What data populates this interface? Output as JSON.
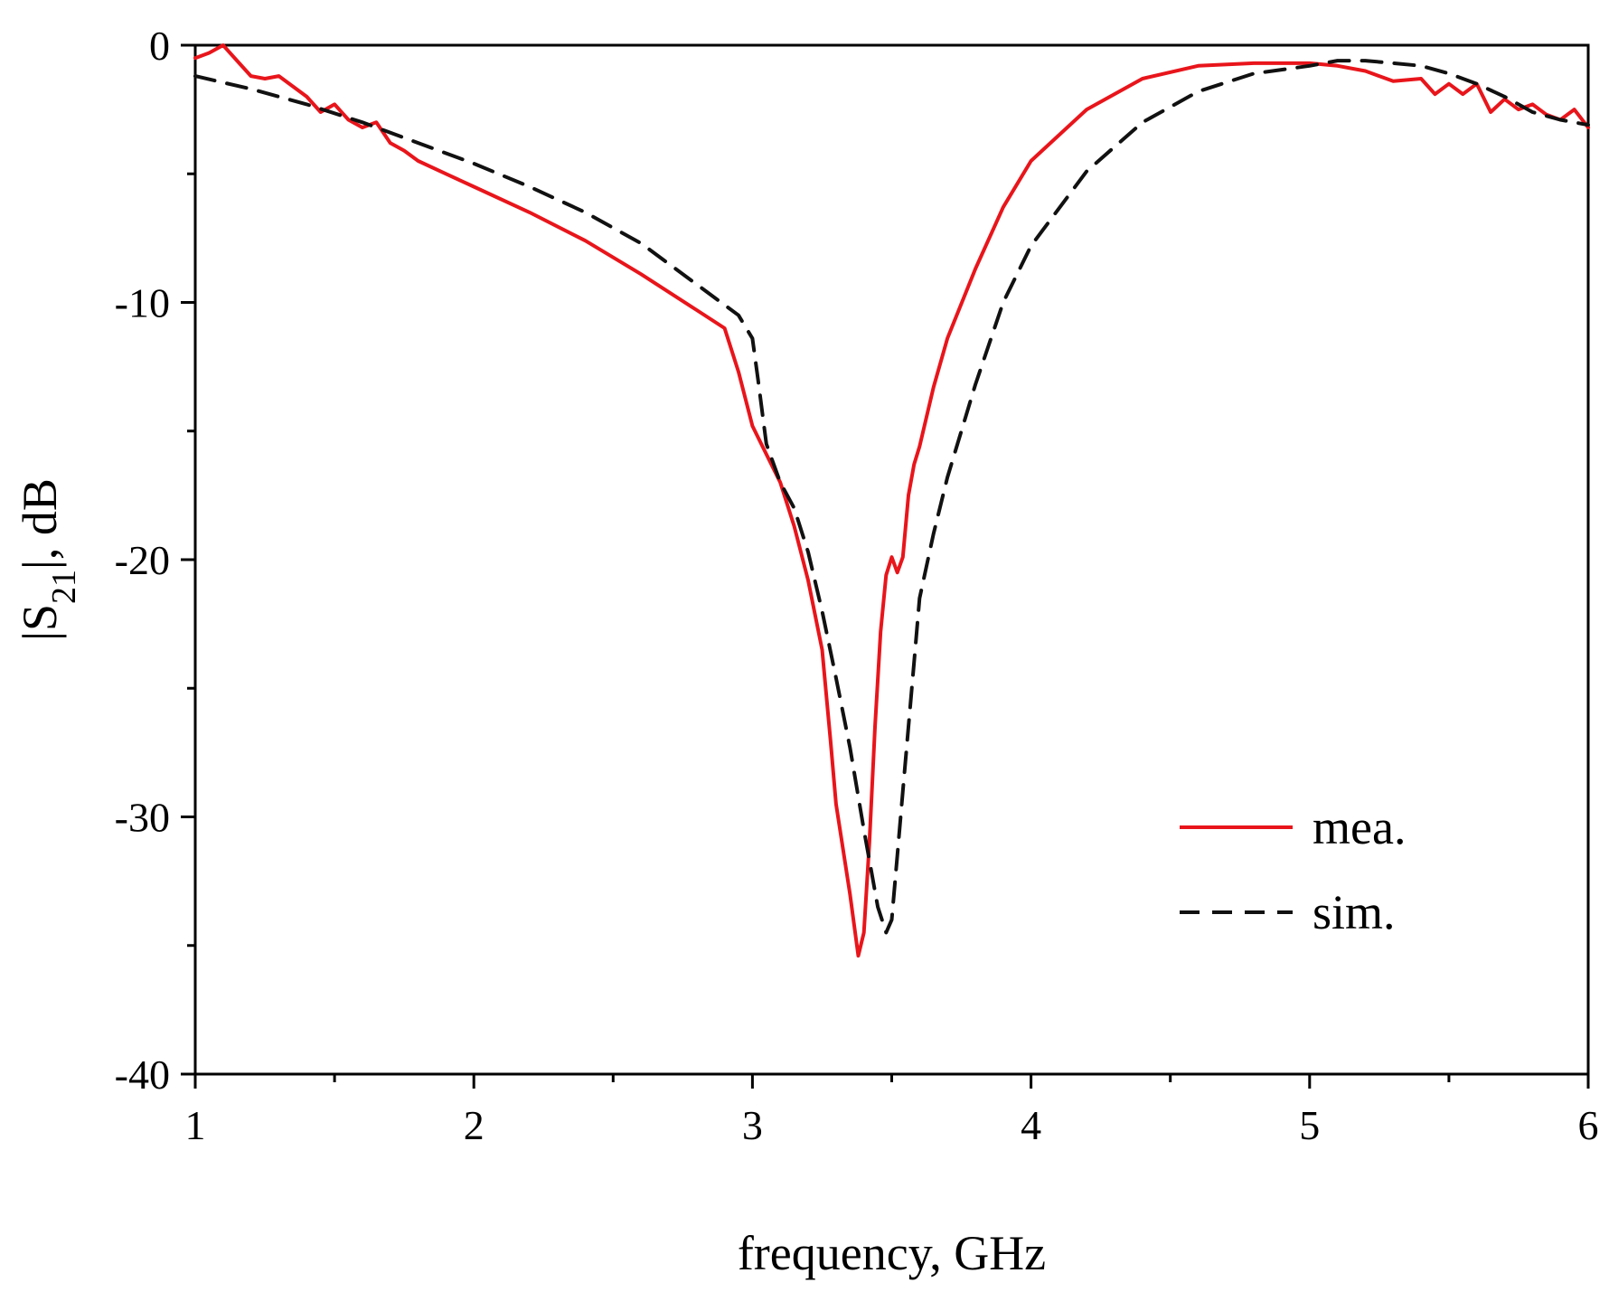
{
  "chart_data": {
    "type": "line",
    "title": "",
    "xlabel": "frequency, GHz",
    "ylabel": "|S21|, dB",
    "xlim": [
      1,
      6
    ],
    "ylim": [
      -40,
      0
    ],
    "xticks": [
      "1",
      "2",
      "3",
      "4",
      "5",
      "6"
    ],
    "yticks": [
      "0",
      "-10",
      "-20",
      "-30",
      "-40"
    ],
    "grid": false,
    "legend_position": "lower-right",
    "colors": {
      "mea": "#e8151b",
      "sim": "#111111"
    },
    "series": [
      {
        "name": "mea.",
        "style": "solid",
        "x": [
          1.0,
          1.05,
          1.1,
          1.15,
          1.2,
          1.25,
          1.3,
          1.35,
          1.4,
          1.45,
          1.5,
          1.55,
          1.6,
          1.65,
          1.7,
          1.75,
          1.8,
          1.9,
          2.0,
          2.2,
          2.4,
          2.6,
          2.8,
          2.9,
          2.95,
          3.0,
          3.05,
          3.1,
          3.15,
          3.2,
          3.25,
          3.28,
          3.3,
          3.35,
          3.38,
          3.4,
          3.42,
          3.44,
          3.46,
          3.48,
          3.5,
          3.52,
          3.54,
          3.56,
          3.58,
          3.6,
          3.65,
          3.7,
          3.8,
          3.9,
          4.0,
          4.2,
          4.4,
          4.6,
          4.8,
          5.0,
          5.1,
          5.2,
          5.3,
          5.4,
          5.45,
          5.5,
          5.55,
          5.6,
          5.65,
          5.7,
          5.75,
          5.8,
          5.85,
          5.9,
          5.95,
          6.0
        ],
        "y": [
          -0.5,
          -0.3,
          0.0,
          -0.6,
          -1.2,
          -1.3,
          -1.2,
          -1.6,
          -2.0,
          -2.6,
          -2.3,
          -2.9,
          -3.2,
          -3.0,
          -3.8,
          -4.1,
          -4.5,
          -5.0,
          -5.5,
          -6.5,
          -7.6,
          -8.9,
          -10.3,
          -11.0,
          -12.7,
          -14.8,
          -15.9,
          -17.0,
          -18.7,
          -20.8,
          -23.5,
          -27.0,
          -29.5,
          -33.0,
          -35.4,
          -34.5,
          -31.0,
          -26.5,
          -22.8,
          -20.6,
          -19.9,
          -20.5,
          -19.9,
          -17.5,
          -16.3,
          -15.6,
          -13.3,
          -11.4,
          -8.7,
          -6.3,
          -4.5,
          -2.5,
          -1.3,
          -0.8,
          -0.7,
          -0.7,
          -0.8,
          -1.0,
          -1.4,
          -1.3,
          -1.9,
          -1.5,
          -1.9,
          -1.5,
          -2.6,
          -2.1,
          -2.5,
          -2.3,
          -2.7,
          -2.9,
          -2.5,
          -3.2
        ]
      },
      {
        "name": "sim.",
        "style": "dashed",
        "x": [
          1.0,
          1.2,
          1.4,
          1.6,
          1.8,
          2.0,
          2.2,
          2.4,
          2.6,
          2.8,
          2.95,
          3.0,
          3.02,
          3.05,
          3.1,
          3.15,
          3.2,
          3.25,
          3.3,
          3.35,
          3.4,
          3.45,
          3.48,
          3.5,
          3.52,
          3.54,
          3.56,
          3.58,
          3.6,
          3.65,
          3.7,
          3.8,
          3.9,
          4.0,
          4.2,
          4.4,
          4.6,
          4.8,
          5.0,
          5.1,
          5.2,
          5.3,
          5.4,
          5.5,
          5.6,
          5.7,
          5.8,
          5.9,
          6.0
        ],
        "y": [
          -1.2,
          -1.7,
          -2.3,
          -3.0,
          -3.8,
          -4.6,
          -5.5,
          -6.5,
          -7.7,
          -9.3,
          -10.5,
          -11.4,
          -13.0,
          -15.5,
          -17.0,
          -18.0,
          -19.7,
          -22.0,
          -24.6,
          -27.3,
          -30.5,
          -33.5,
          -34.5,
          -34.0,
          -31.5,
          -29.0,
          -26.5,
          -24.0,
          -21.5,
          -19.0,
          -16.8,
          -13.2,
          -10.0,
          -7.8,
          -4.9,
          -3.0,
          -1.8,
          -1.1,
          -0.8,
          -0.6,
          -0.6,
          -0.7,
          -0.8,
          -1.1,
          -1.5,
          -2.0,
          -2.6,
          -2.9,
          -3.1
        ]
      }
    ]
  }
}
